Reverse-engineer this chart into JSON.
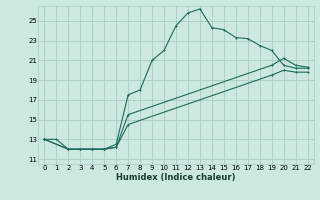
{
  "xlabel": "Humidex (Indice chaleur)",
  "xlim": [
    -0.5,
    22.5
  ],
  "ylim": [
    10.5,
    26.5
  ],
  "xticks": [
    0,
    1,
    2,
    3,
    4,
    5,
    6,
    7,
    8,
    9,
    10,
    11,
    12,
    13,
    14,
    15,
    16,
    17,
    18,
    19,
    20,
    21,
    22
  ],
  "yticks": [
    11,
    13,
    15,
    17,
    19,
    21,
    23,
    25
  ],
  "bg_color": "#cce8e0",
  "grid_color": "#aaccc4",
  "line_color": "#1a6b5e",
  "line1_x": [
    0,
    1,
    2,
    3,
    4,
    5,
    6,
    7,
    8,
    9,
    10,
    11,
    12,
    13,
    14,
    15,
    16,
    17,
    18,
    19,
    20,
    21,
    22
  ],
  "line1_y": [
    13,
    13,
    12,
    12,
    12,
    12,
    12.5,
    17.5,
    18,
    21,
    22,
    24.5,
    25.8,
    26.2,
    24.3,
    24.1,
    23.3,
    23.2,
    22.5,
    22,
    20.5,
    20.2,
    20.2
  ],
  "line2_x": [
    0,
    2,
    3,
    4,
    5,
    6,
    7,
    19,
    20,
    21,
    22
  ],
  "line2_y": [
    13,
    12,
    12,
    12,
    12,
    12.2,
    15.5,
    20.5,
    21.2,
    20.5,
    20.3
  ],
  "line3_x": [
    0,
    2,
    3,
    4,
    5,
    6,
    7,
    19,
    20,
    21,
    22
  ],
  "line3_y": [
    13,
    12,
    12,
    12,
    12,
    12.2,
    14.5,
    19.5,
    20.0,
    19.8,
    19.8
  ]
}
